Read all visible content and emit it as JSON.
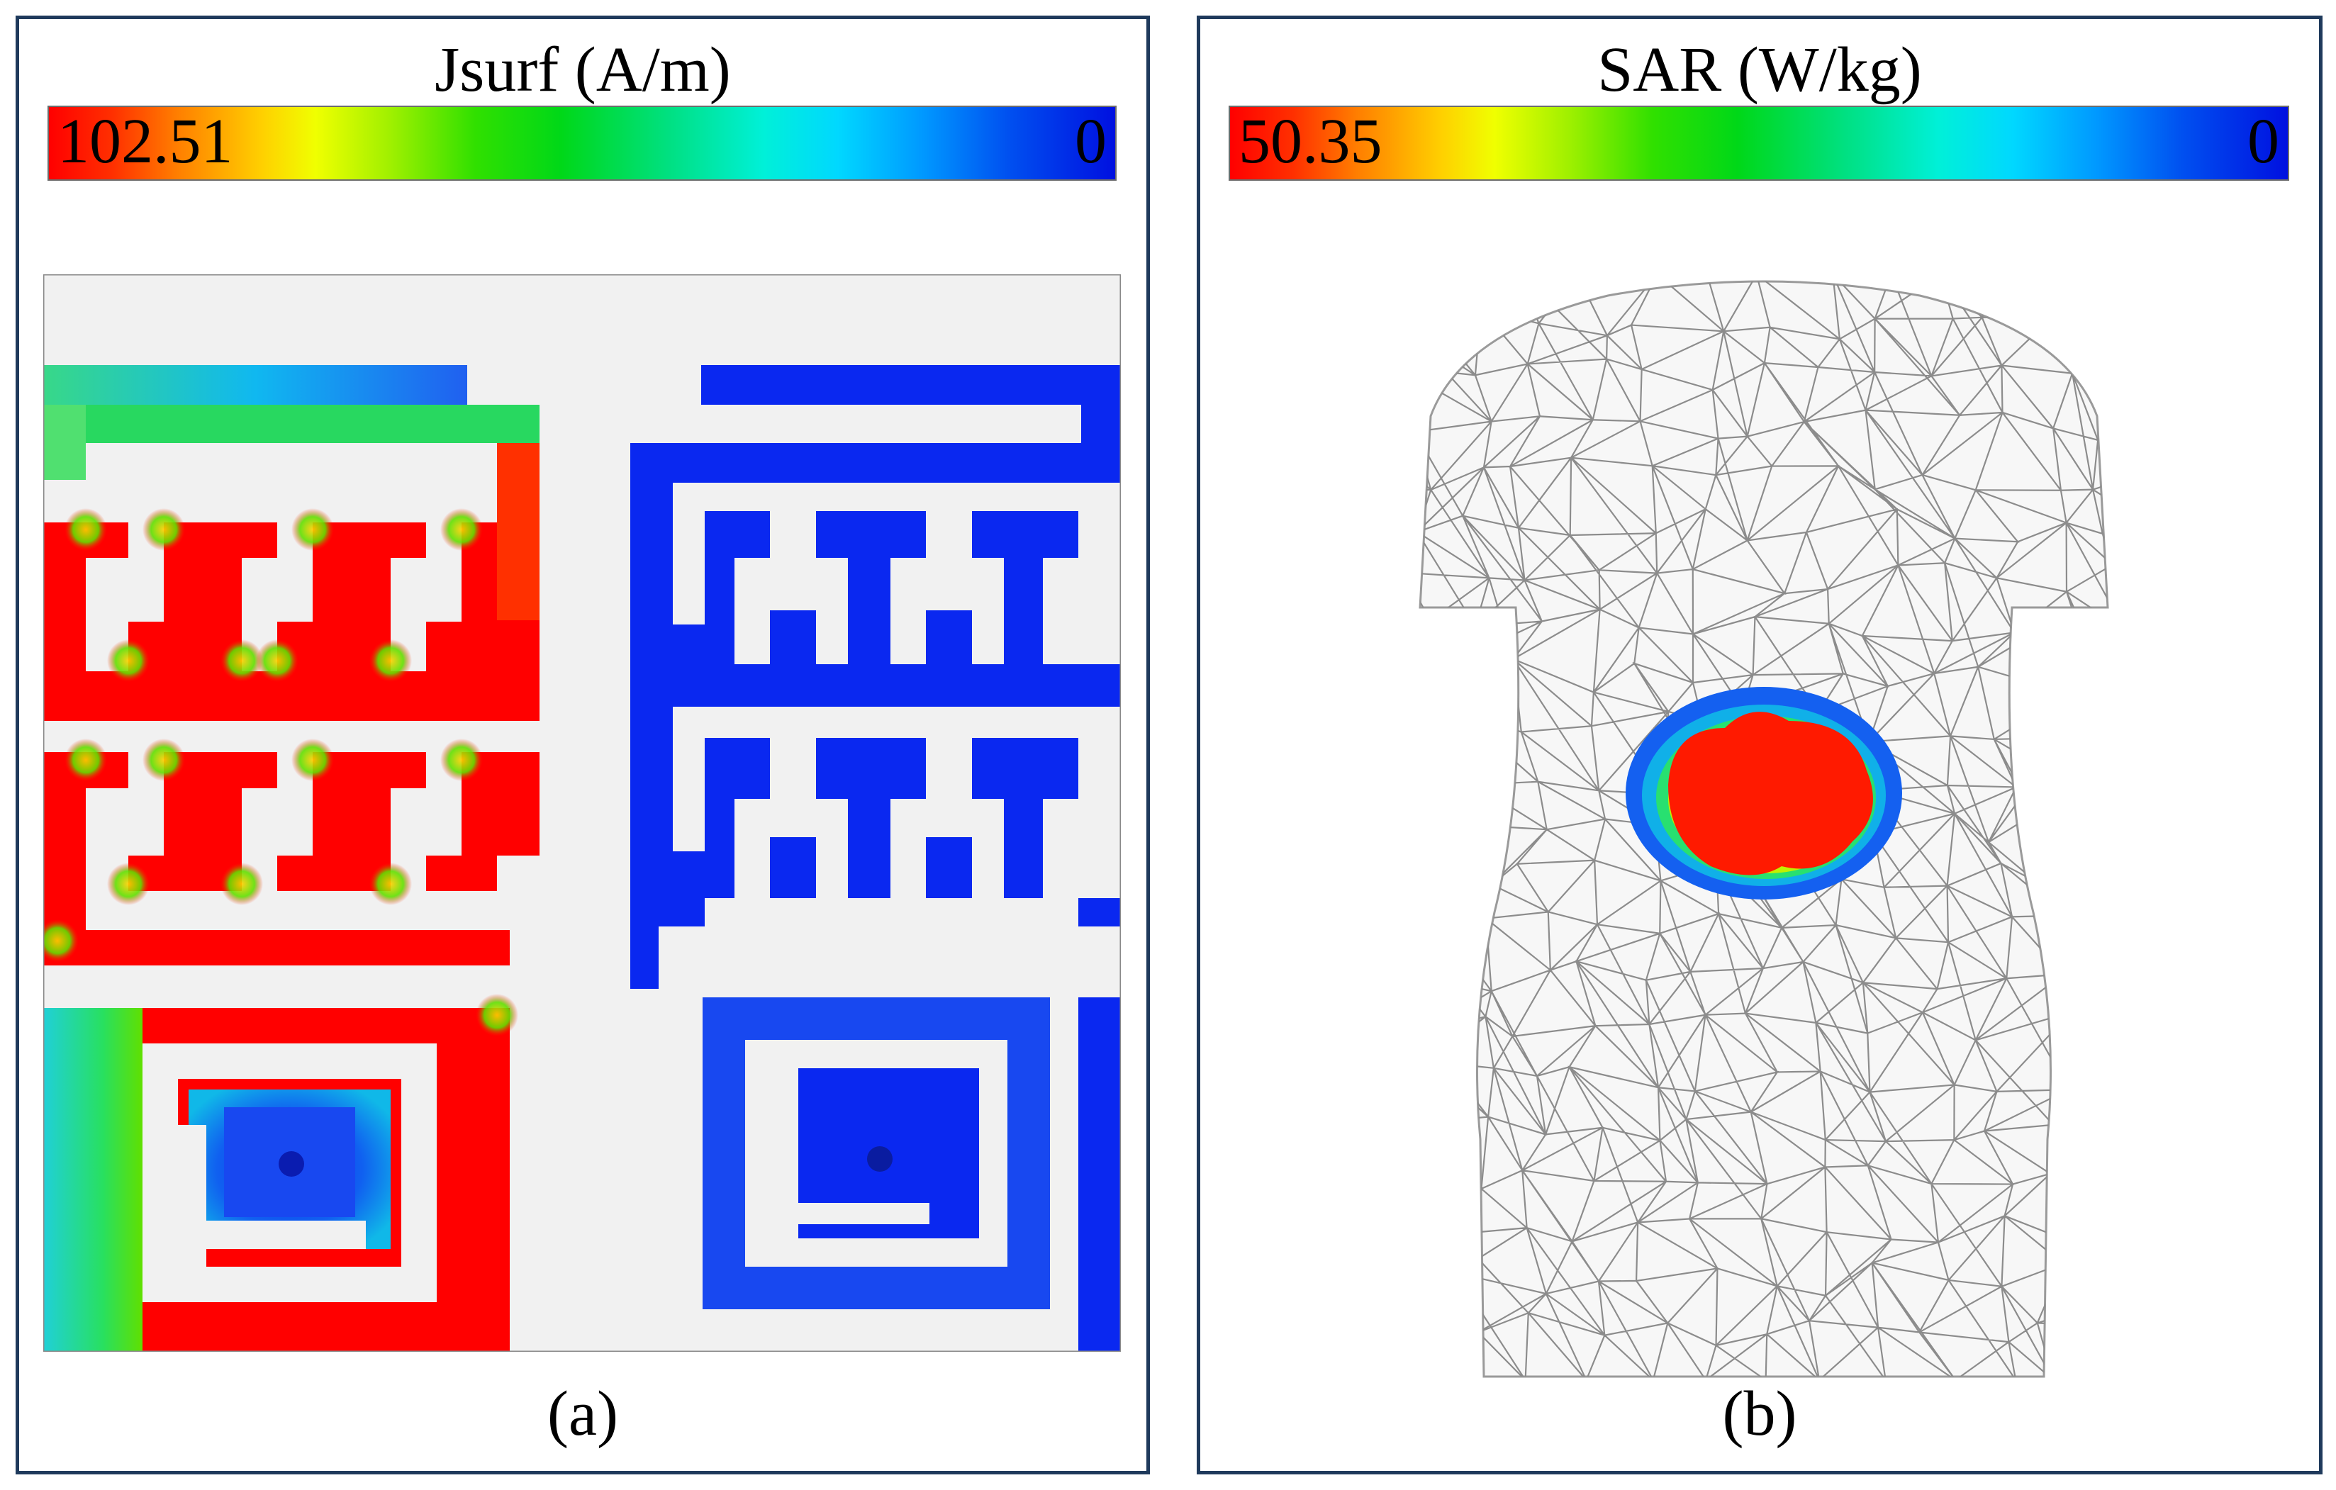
{
  "panel_a": {
    "title": "Jsurf (A/m)",
    "colorbar": {
      "max_label": "102.51",
      "min_label": "0"
    },
    "caption": "(a)"
  },
  "panel_b": {
    "title": "SAR (W/kg)",
    "colorbar": {
      "max_label": "50.35",
      "min_label": "0"
    },
    "caption": "(b)"
  },
  "colors": {
    "panel_border": "#1f3a5c",
    "high": "#ff0000",
    "mid": "#00e000",
    "low": "#0a28f0",
    "background_gray": "#f0f0f0",
    "mesh": "#8c8c8c"
  }
}
